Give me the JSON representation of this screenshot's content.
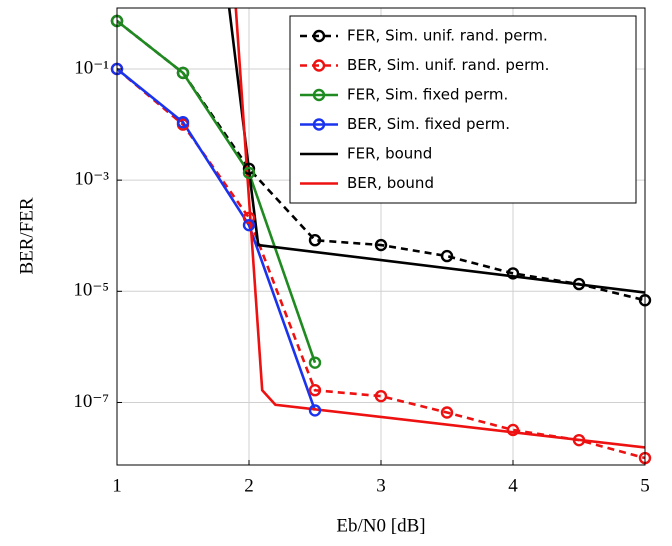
{
  "chart_data": {
    "type": "line",
    "ylabel": "BER/FER",
    "xlabel": "Eb/N0 [dB]",
    "log_y": true,
    "grid": true,
    "legend": "upper right",
    "xlim": [
      1,
      5
    ],
    "xticks": [
      1,
      2,
      3,
      4,
      5
    ],
    "ylim": [
      7.5e-09,
      1.25
    ],
    "yticks": [
      {
        "value": 0.1,
        "label": "10⁻¹"
      },
      {
        "value": 0.001,
        "label": "10⁻³"
      },
      {
        "value": 1e-05,
        "label": "10⁻⁵"
      },
      {
        "value": 1e-07,
        "label": "10⁻⁷"
      }
    ],
    "series": [
      {
        "name": "FER, Sim. unif. rand. perm.",
        "color": "#000000",
        "dashed": true,
        "markers": true,
        "x": [
          1,
          1.5,
          2,
          2.5,
          3,
          3.5,
          4,
          4.5,
          5
        ],
        "values": [
          0.73,
          0.085,
          0.0016,
          8.3e-05,
          6.8e-05,
          4.3e-05,
          2.1e-05,
          1.35e-05,
          6.9e-06
        ]
      },
      {
        "name": "BER, Sim. unif. rand. perm.",
        "color": "#ee1111",
        "dashed": true,
        "markers": true,
        "x": [
          1,
          1.5,
          2,
          2.5,
          3,
          3.5,
          4,
          4.5,
          5
        ],
        "values": [
          0.1,
          0.01,
          0.00021,
          1.66e-07,
          1.3e-07,
          6.6e-08,
          3.2e-08,
          2.1e-08,
          1e-08
        ]
      },
      {
        "name": "FER, Sim. fixed perm.",
        "color": "#1f8a1f",
        "dashed": false,
        "markers": true,
        "x": [
          1,
          1.5,
          2,
          2.5
        ],
        "values": [
          0.73,
          0.085,
          0.00135,
          5.2e-07
        ]
      },
      {
        "name": "BER, Sim. fixed perm.",
        "color": "#1a33ee",
        "dashed": false,
        "markers": true,
        "x": [
          1,
          1.5,
          2,
          2.5
        ],
        "values": [
          0.1,
          0.011,
          0.000155,
          7.2e-08
        ]
      },
      {
        "name": "FER, bound",
        "color": "#000000",
        "dashed": false,
        "markers": false,
        "x": [
          1.85,
          2.0,
          2.07,
          5
        ],
        "values": [
          1.25,
          0.0015,
          6.8e-05,
          9.5e-06
        ]
      },
      {
        "name": "BER, bound",
        "color": "#ee1111",
        "dashed": false,
        "markers": false,
        "x": [
          1.9,
          2.1,
          2.2,
          5
        ],
        "values": [
          1.25,
          1.66e-07,
          9.1e-08,
          1.55e-08
        ]
      }
    ]
  }
}
